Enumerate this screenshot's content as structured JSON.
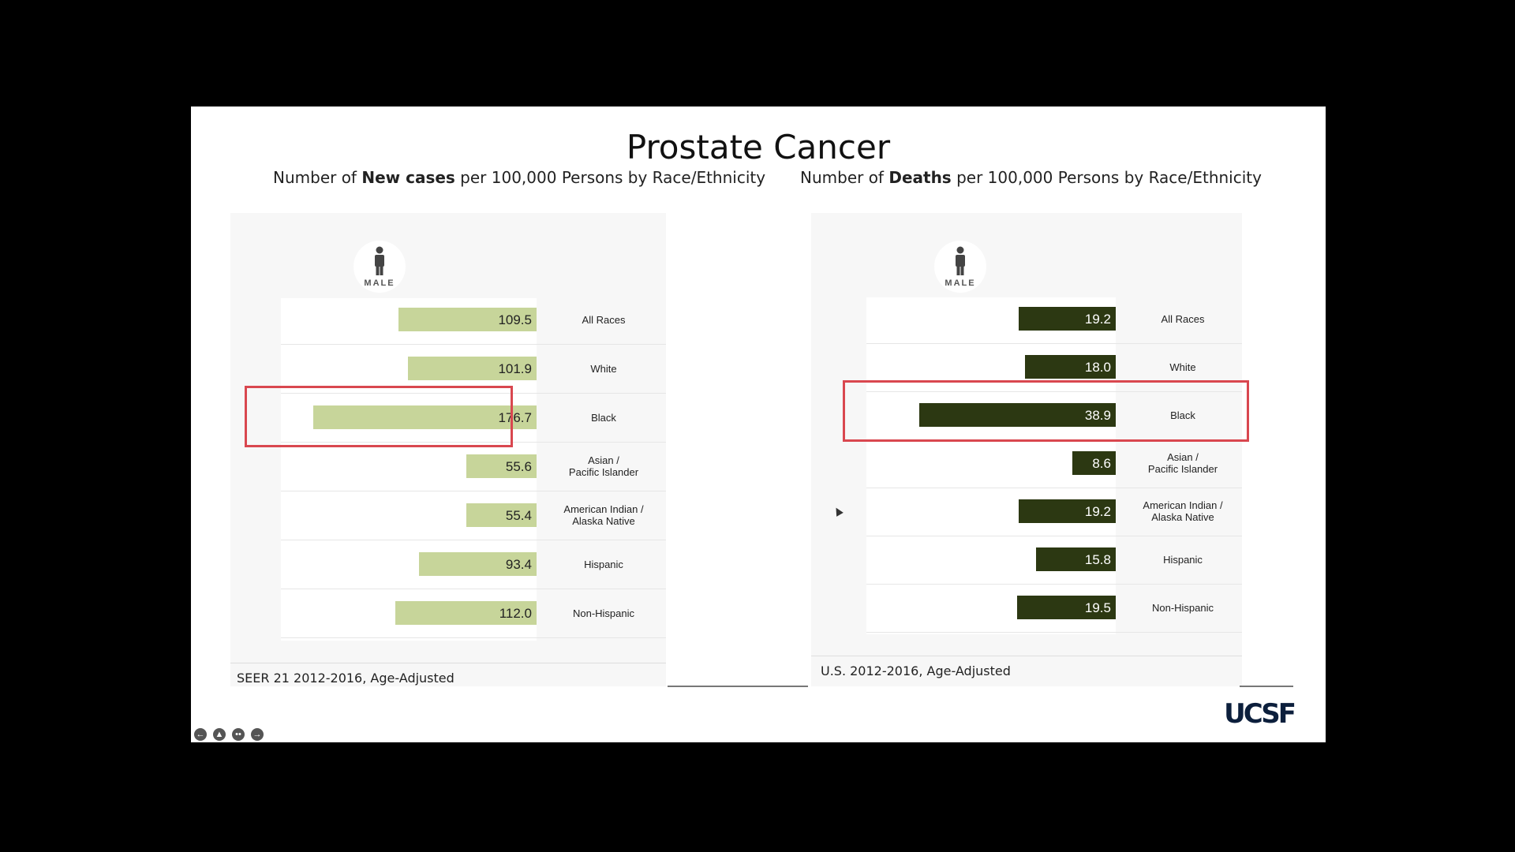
{
  "slide": {
    "title": "Prostate Cancer",
    "logo_text": "UCSF",
    "nav_icons": [
      "back-icon",
      "home-icon",
      "more-icon",
      "forward-icon"
    ]
  },
  "chart_data": [
    {
      "type": "bar",
      "orientation": "horizontal",
      "title_pre": "Number of ",
      "title_bold": "New cases",
      "title_post": " per 100,000 Persons by Race/Ethnicity",
      "group_label": "MALE",
      "categories": [
        "All Races",
        "White",
        "Black",
        "Asian / Pacific Islander",
        "American Indian / Alaska Native",
        "Hispanic",
        "Non-Hispanic"
      ],
      "category_lines": [
        [
          "All Races"
        ],
        [
          "White"
        ],
        [
          "Black"
        ],
        [
          "Asian /",
          "Pacific Islander"
        ],
        [
          "American Indian /",
          "Alaska Native"
        ],
        [
          "Hispanic"
        ],
        [
          "Non-Hispanic"
        ]
      ],
      "values": [
        109.5,
        101.9,
        176.7,
        55.6,
        55.4,
        93.4,
        112.0
      ],
      "value_labels": [
        "109.5",
        "101.9",
        "176.7",
        "55.6",
        "55.4",
        "93.4",
        "112.0"
      ],
      "max": 200,
      "color": "#c7d59a",
      "value_color": "#222222",
      "highlighted": "Black",
      "source": "SEER 21 2012-2016, Age-Adjusted"
    },
    {
      "type": "bar",
      "orientation": "horizontal",
      "title_pre": "Number of ",
      "title_bold": "Deaths",
      "title_post": " per 100,000 Persons by Race/Ethnicity",
      "group_label": "MALE",
      "categories": [
        "All Races",
        "White",
        "Black",
        "Asian / Pacific Islander",
        "American Indian / Alaska Native",
        "Hispanic",
        "Non-Hispanic"
      ],
      "category_lines": [
        [
          "All Races"
        ],
        [
          "White"
        ],
        [
          "Black"
        ],
        [
          "Asian /",
          "Pacific Islander"
        ],
        [
          "American Indian /",
          "Alaska Native"
        ],
        [
          "Hispanic"
        ],
        [
          "Non-Hispanic"
        ]
      ],
      "values": [
        19.2,
        18.0,
        38.9,
        8.6,
        19.2,
        15.8,
        19.5
      ],
      "value_labels": [
        "19.2",
        "18.0",
        "38.9",
        "8.6",
        "19.2",
        "15.8",
        "19.5"
      ],
      "max": 44,
      "color": "#2c3812",
      "value_color": "#ffffff",
      "highlighted": "Black",
      "source": "U.S. 2012-2016, Age-Adjusted"
    }
  ]
}
